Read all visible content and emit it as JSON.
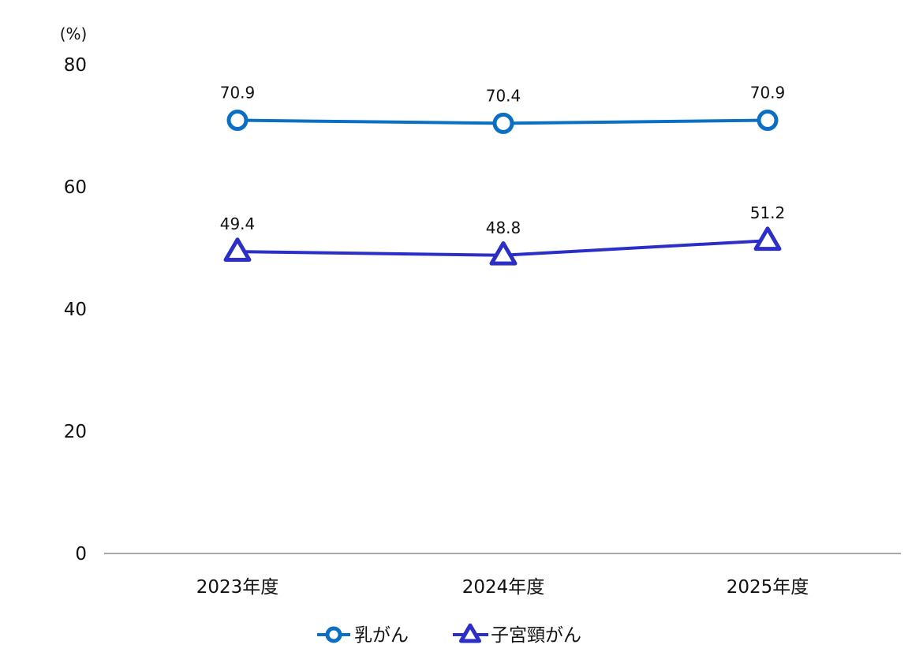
{
  "chart_data": {
    "type": "line",
    "title": "",
    "xlabel": "",
    "ylabel": "",
    "y_unit": "(%)",
    "categories": [
      "2023年度",
      "2024年度",
      "2025年度"
    ],
    "ylim": [
      0,
      80
    ],
    "yticks": [
      0,
      20,
      40,
      60,
      80
    ],
    "grid": false,
    "legend_position": "bottom-center",
    "series": [
      {
        "name": "乳がん",
        "values": [
          70.9,
          70.4,
          70.9
        ],
        "value_labels": [
          "70.9",
          "70.4",
          "70.9"
        ],
        "marker": "circle",
        "color": "#0b6fc4"
      },
      {
        "name": "子宮頸がん",
        "values": [
          49.4,
          48.8,
          51.2
        ],
        "value_labels": [
          "49.4",
          "48.8",
          "51.2"
        ],
        "marker": "triangle",
        "color": "#2b2fc8"
      }
    ]
  }
}
